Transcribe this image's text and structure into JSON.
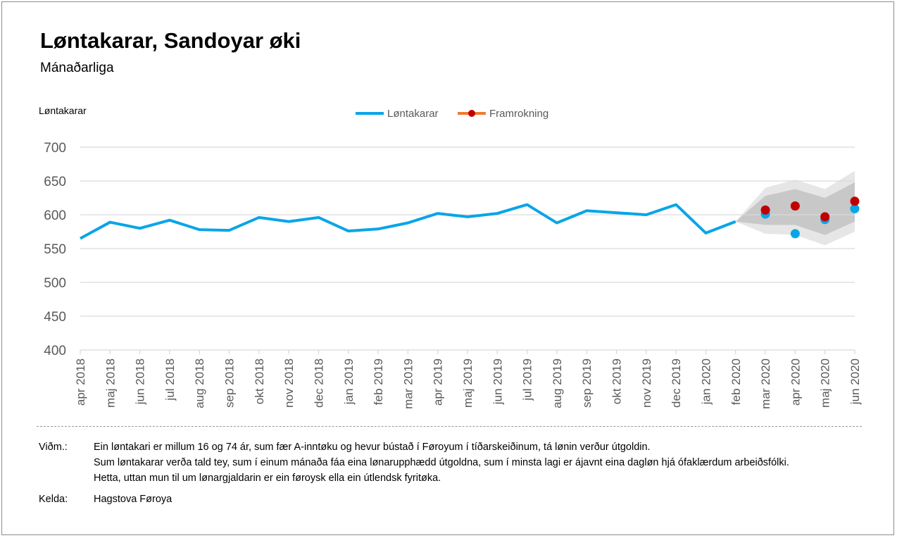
{
  "title": "Løntakarar, Sandoyar øki",
  "subtitle": "Mánaðarliga",
  "colors": {
    "main_series": "#0aa5e6",
    "forecast_marker": "#c00000",
    "forecast_line": "#ed7d31",
    "band_outer": "#e6e6e6",
    "band_inner": "#c8c8c8",
    "grid": "#d9d9d9",
    "axis_text": "#595959"
  },
  "chart_data": {
    "type": "line",
    "ylabel": "Løntakarar",
    "ylim": [
      400,
      700
    ],
    "yticks": [
      400,
      450,
      500,
      550,
      600,
      650,
      700
    ],
    "grid": true,
    "legend_position": "top-center",
    "categories": [
      "apr 2018",
      "maj 2018",
      "jun 2018",
      "jul 2018",
      "aug 2018",
      "sep 2018",
      "okt 2018",
      "nov 2018",
      "dec 2018",
      "jan 2019",
      "feb 2019",
      "mar 2019",
      "apr 2019",
      "maj 2019",
      "jun 2019",
      "jul 2019",
      "aug 2019",
      "sep 2019",
      "okt 2019",
      "nov 2019",
      "dec 2019",
      "jan 2020",
      "feb 2020",
      "mar 2020",
      "apr 2020",
      "maj 2020",
      "jun 2020"
    ],
    "series": [
      {
        "name": "Løntakarar",
        "values": [
          565,
          589,
          580,
          592,
          578,
          577,
          596,
          590,
          596,
          576,
          579,
          588,
          602,
          597,
          602,
          615,
          588,
          606,
          603,
          600,
          615,
          573,
          590,
          null,
          null,
          null,
          null
        ],
        "later_points": [
          601,
          572,
          593,
          609
        ]
      },
      {
        "name": "Framrokning",
        "values": [
          null,
          null,
          null,
          null,
          null,
          null,
          null,
          null,
          null,
          null,
          null,
          null,
          null,
          null,
          null,
          null,
          null,
          null,
          null,
          null,
          null,
          null,
          null,
          607,
          613,
          597,
          620
        ]
      }
    ],
    "forecast_band": {
      "start_index": 22,
      "outer_upper": [
        590,
        640,
        652,
        638,
        665
      ],
      "outer_lower": [
        590,
        572,
        570,
        555,
        575
      ],
      "inner_upper": [
        590,
        628,
        638,
        625,
        648
      ],
      "inner_lower": [
        590,
        585,
        585,
        570,
        590
      ]
    }
  },
  "notes": {
    "label": "Viðm.:",
    "lines": [
      "Ein løntakari er millum 16 og 74 ár, sum fær A-inntøku og hevur bústað í Føroyum í tíðarskeiðinum, tá lønin verður útgoldin.",
      "Sum løntakarar verða tald tey, sum í einum mánaða fáa eina lønarupphædd útgoldna, sum í minsta lagi er ájavnt eina dagløn hjá ófaklærdum arbeiðsfólki.",
      "Hetta, uttan mun til um lønargjaldarin er ein føroysk ella ein útlendsk fyritøka."
    ],
    "source_label": "Kelda:",
    "source": "Hagstova Føroya"
  }
}
